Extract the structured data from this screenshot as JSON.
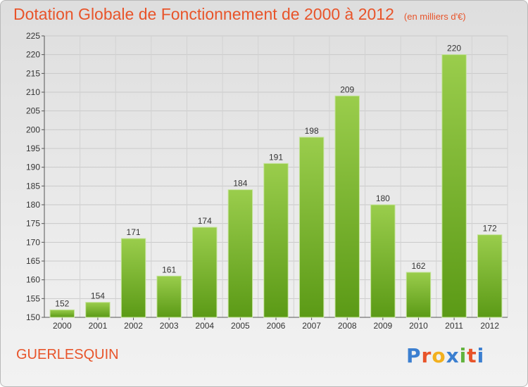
{
  "header": {
    "title": "Dotation Globale de Fonctionnement de 2000 à 2012",
    "subtitle": "(en milliers d'€)"
  },
  "footer": {
    "commune": "GUERLESQUIN",
    "logo_letters": [
      "P",
      "r",
      "o",
      "x",
      "i",
      "t",
      "i"
    ]
  },
  "colors": {
    "title": "#e8542a",
    "bar_top": "#9acd4c",
    "bar_bottom": "#5b9a16",
    "logo": [
      "#3b7fd0",
      "#e8542a",
      "#f2b01e",
      "#3b7fd0",
      "#62b33d",
      "#e8542a",
      "#3b7fd0"
    ]
  },
  "chart_data": {
    "type": "bar",
    "categories": [
      "2000",
      "2001",
      "2002",
      "2003",
      "2004",
      "2005",
      "2006",
      "2007",
      "2008",
      "2009",
      "2010",
      "2011",
      "2012"
    ],
    "values": [
      152,
      154,
      171,
      161,
      174,
      184,
      191,
      198,
      209,
      180,
      162,
      220,
      172
    ],
    "yticks": [
      150,
      155,
      160,
      165,
      170,
      175,
      180,
      185,
      190,
      195,
      200,
      205,
      210,
      215,
      220,
      225
    ],
    "ylim": [
      150,
      225
    ],
    "grid": true,
    "legend": "none",
    "data_labels": true
  }
}
